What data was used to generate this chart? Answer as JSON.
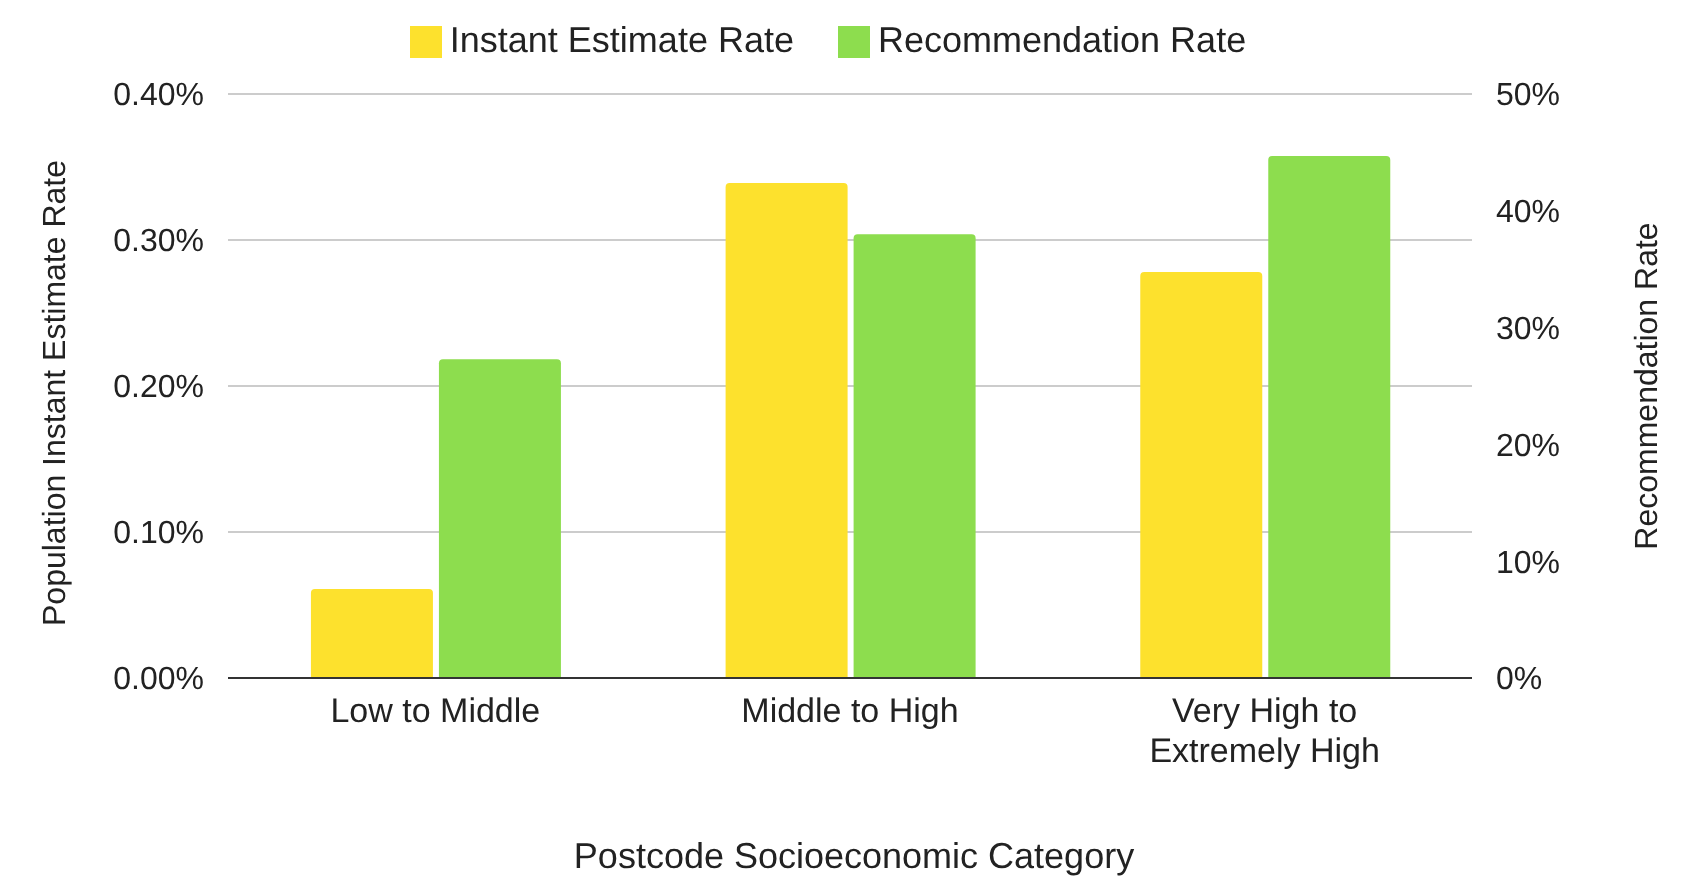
{
  "chart_data": {
    "type": "bar",
    "xlabel": "Postcode Socioeconomic Category",
    "ylabel": "Population Instant Estimate Rate",
    "y2label": "Recommendation Rate",
    "categories": [
      "Low to Middle",
      "Middle to High",
      "Very High to Extremely High"
    ],
    "series": [
      {
        "name": "Instant Estimate Rate",
        "color": "#fde12d",
        "values": [
          0.061,
          0.339,
          0.278
        ]
      },
      {
        "name": "Recommendation Rate",
        "color": "#8ddd4e",
        "values": [
          27.3,
          38.0,
          44.7
        ],
        "axis": "y2"
      }
    ],
    "ylim": [
      0,
      0.4
    ],
    "yticks": [
      {
        "value": 0,
        "label": "0.00%"
      },
      {
        "value": 0.1,
        "label": "0.10%"
      },
      {
        "value": 0.2,
        "label": "0.20%"
      },
      {
        "value": 0.3,
        "label": "0.30%"
      },
      {
        "value": 0.4,
        "label": "0.40%"
      }
    ],
    "y2lim": [
      0,
      50
    ],
    "y2ticks": [
      {
        "value": 0,
        "label": "0%"
      },
      {
        "value": 10,
        "label": "10%"
      },
      {
        "value": 20,
        "label": "20%"
      },
      {
        "value": 30,
        "label": "30%"
      },
      {
        "value": 40,
        "label": "40%"
      },
      {
        "value": 50,
        "label": "50%"
      }
    ],
    "grid": "y",
    "legend": "top"
  }
}
